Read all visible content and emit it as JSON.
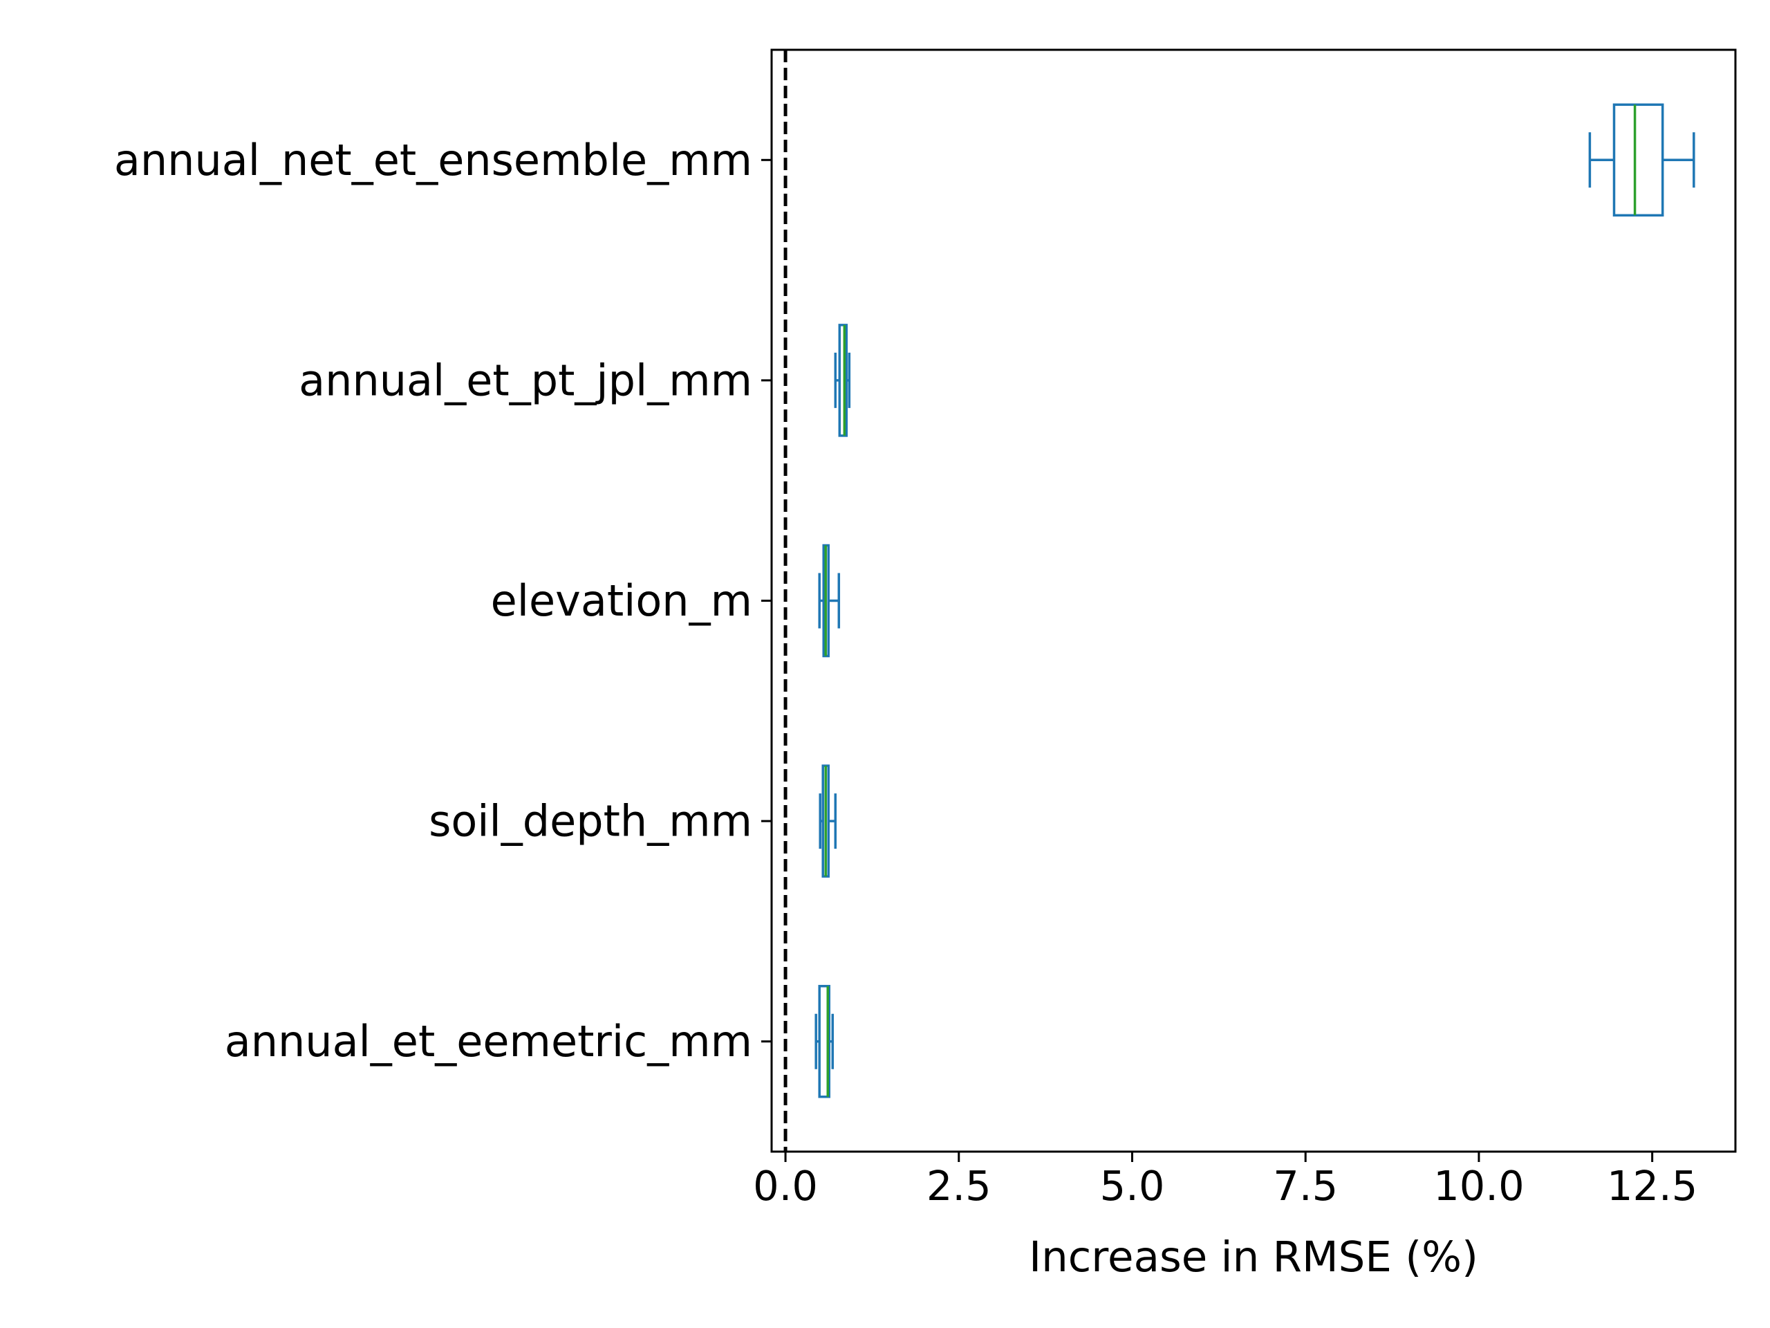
{
  "chart_data": {
    "type": "boxplot",
    "orientation": "horizontal",
    "xlabel": "Increase in RMSE (%)",
    "xlim": [
      -0.2,
      13.7
    ],
    "xticks": [
      0.0,
      2.5,
      5.0,
      7.5,
      10.0,
      12.5
    ],
    "xtick_labels": [
      "0.0",
      "2.5",
      "5.0",
      "7.5",
      "10.0",
      "12.5"
    ],
    "reference_line": {
      "x": 0,
      "style": "dashed",
      "color": "#000000"
    },
    "colors": {
      "box": "#1f77b4",
      "median": "#2ca02c",
      "axis": "#000000"
    },
    "categories": [
      "annual_net_et_ensemble_mm",
      "annual_et_pt_jpl_mm",
      "elevation_m",
      "soil_depth_mm",
      "annual_et_eemetric_mm"
    ],
    "boxes": [
      {
        "label": "annual_net_et_ensemble_mm",
        "whisker_low": 11.6,
        "q1": 11.95,
        "median": 12.25,
        "q3": 12.65,
        "whisker_high": 13.1
      },
      {
        "label": "annual_et_pt_jpl_mm",
        "whisker_low": 0.72,
        "q1": 0.78,
        "median": 0.85,
        "q3": 0.88,
        "whisker_high": 0.92
      },
      {
        "label": "elevation_m",
        "whisker_low": 0.49,
        "q1": 0.55,
        "median": 0.58,
        "q3": 0.62,
        "whisker_high": 0.77
      },
      {
        "label": "soil_depth_mm",
        "whisker_low": 0.5,
        "q1": 0.54,
        "median": 0.58,
        "q3": 0.62,
        "whisker_high": 0.72
      },
      {
        "label": "annual_et_eemetric_mm",
        "whisker_low": 0.44,
        "q1": 0.49,
        "median": 0.61,
        "q3": 0.63,
        "whisker_high": 0.68
      }
    ]
  }
}
